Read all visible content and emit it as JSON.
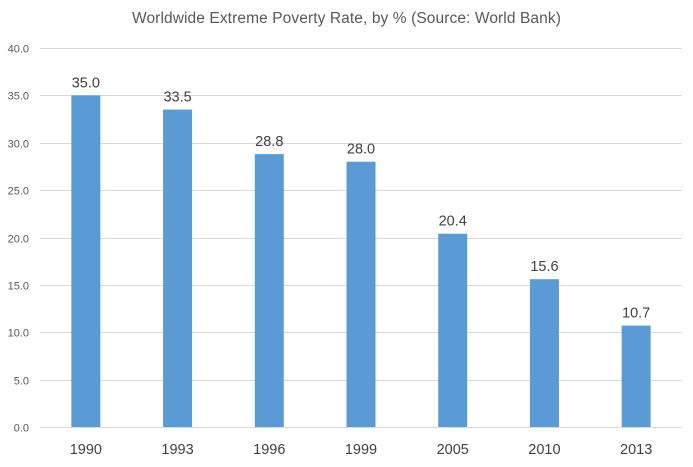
{
  "colors": {
    "bar": "#5b9bd5",
    "grid": "#d9d9d9",
    "text": "#595959",
    "label": "#404040"
  },
  "chart_data": {
    "type": "bar",
    "title": "Worldwide Extreme Poverty Rate, by % (Source: World Bank)",
    "xlabel": "",
    "ylabel": "",
    "categories": [
      "1990",
      "1993",
      "1996",
      "1999",
      "2005",
      "2010",
      "2013"
    ],
    "values": [
      35.0,
      33.5,
      28.8,
      28.0,
      20.4,
      15.6,
      10.7
    ],
    "data_labels": [
      "35.0",
      "33.5",
      "28.8",
      "28.0",
      "20.4",
      "15.6",
      "10.7"
    ],
    "ylim": [
      0,
      40
    ],
    "yticks": [
      0,
      5,
      10,
      15,
      20,
      25,
      30,
      35,
      40
    ],
    "ytick_labels": [
      "0.0",
      "5.0",
      "10.0",
      "15.0",
      "20.0",
      "25.0",
      "30.0",
      "35.0",
      "40.0"
    ],
    "grid": true,
    "legend": "none"
  }
}
